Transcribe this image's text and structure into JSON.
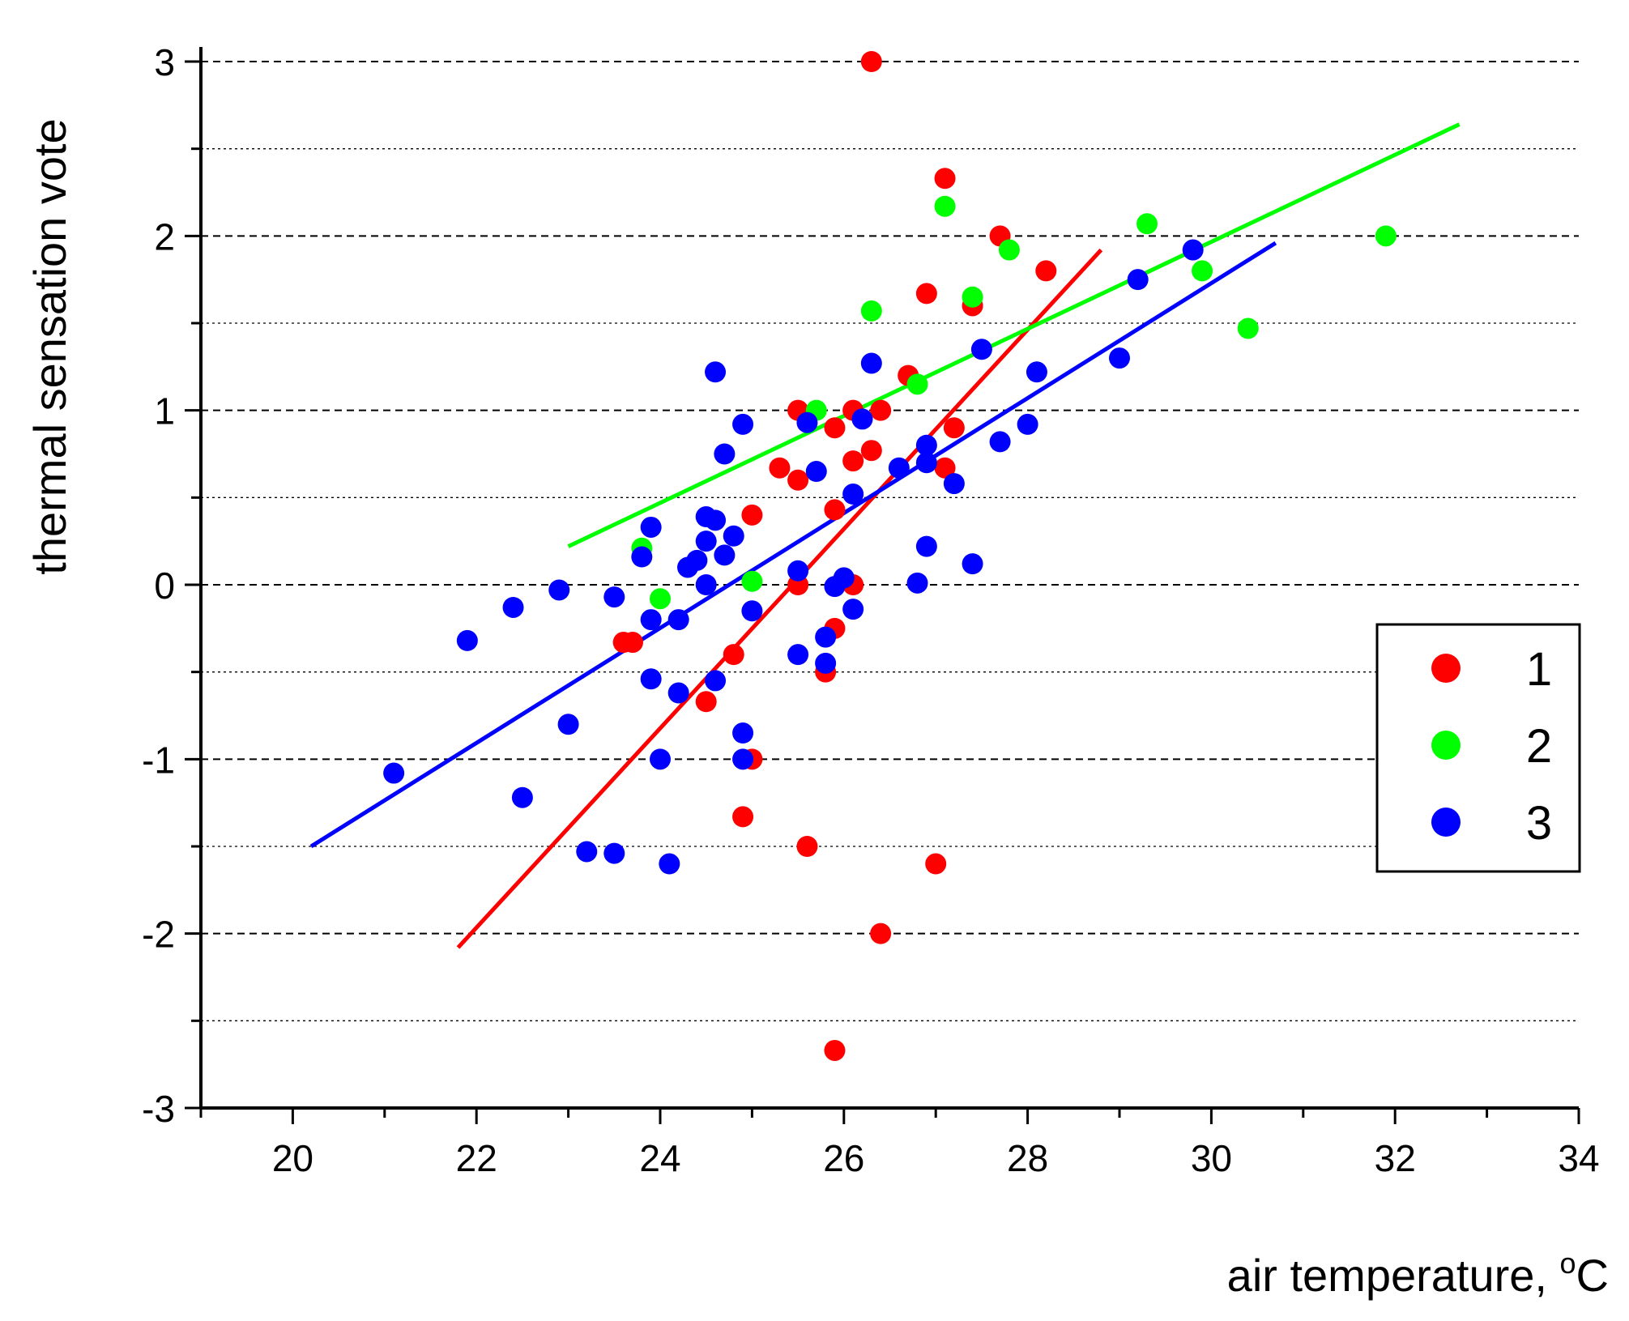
{
  "chart_data": {
    "type": "scatter",
    "title": "",
    "xlabel": "air temperature, ",
    "xlabel_unit": "oC",
    "ylabel": "thermal sensation vote",
    "xlim": [
      19,
      34
    ],
    "ylim": [
      -3,
      3
    ],
    "xticks": [
      20,
      22,
      24,
      26,
      28,
      30,
      32,
      34
    ],
    "xtick_labels": [
      "20",
      "22",
      "24",
      "26",
      "28",
      "30",
      "32",
      "34"
    ],
    "yticks": [
      -3,
      -2,
      -1,
      0,
      1,
      2,
      3
    ],
    "ytick_labels": [
      "-3",
      "-2",
      "-1",
      "0",
      "1",
      "2",
      "3"
    ],
    "grid": "horizontal dashed at integers, dotted at half-values",
    "legend_position": "right",
    "series": [
      {
        "name": "1",
        "color": "#ff0000",
        "points": [
          [
            26.3,
            3.0
          ],
          [
            27.1,
            2.33
          ],
          [
            27.7,
            2.0
          ],
          [
            28.2,
            1.8
          ],
          [
            26.9,
            1.67
          ],
          [
            27.4,
            1.6
          ],
          [
            26.7,
            1.2
          ],
          [
            25.5,
            1.0
          ],
          [
            26.1,
            1.0
          ],
          [
            26.4,
            1.0
          ],
          [
            25.9,
            0.9
          ],
          [
            27.2,
            0.9
          ],
          [
            26.1,
            0.71
          ],
          [
            26.3,
            0.77
          ],
          [
            25.3,
            0.67
          ],
          [
            25.5,
            0.6
          ],
          [
            27.1,
            0.67
          ],
          [
            25.9,
            0.43
          ],
          [
            25.0,
            0.4
          ],
          [
            25.5,
            0.0
          ],
          [
            26.1,
            0.0
          ],
          [
            25.9,
            -0.25
          ],
          [
            23.6,
            -0.33
          ],
          [
            23.7,
            -0.33
          ],
          [
            24.8,
            -0.4
          ],
          [
            25.8,
            -0.5
          ],
          [
            24.5,
            -0.67
          ],
          [
            25.0,
            -1.0
          ],
          [
            24.9,
            -1.33
          ],
          [
            25.6,
            -1.5
          ],
          [
            27.0,
            -1.6
          ],
          [
            26.4,
            -2.0
          ],
          [
            25.9,
            -2.67
          ]
        ],
        "fit": [
          [
            21.8,
            -2.08
          ],
          [
            28.8,
            1.92
          ]
        ]
      },
      {
        "name": "2",
        "color": "#00ff00",
        "points": [
          [
            27.1,
            2.17
          ],
          [
            29.3,
            2.07
          ],
          [
            31.9,
            2.0
          ],
          [
            27.8,
            1.92
          ],
          [
            29.9,
            1.8
          ],
          [
            27.4,
            1.65
          ],
          [
            26.3,
            1.57
          ],
          [
            30.4,
            1.47
          ],
          [
            26.8,
            1.15
          ],
          [
            25.7,
            1.0
          ],
          [
            23.8,
            0.21
          ],
          [
            25.0,
            0.02
          ],
          [
            24.0,
            -0.08
          ]
        ],
        "fit": [
          [
            23.0,
            0.22
          ],
          [
            32.7,
            2.64
          ]
        ]
      },
      {
        "name": "3",
        "color": "#0000ff",
        "points": [
          [
            29.8,
            1.92
          ],
          [
            29.2,
            1.75
          ],
          [
            27.5,
            1.35
          ],
          [
            29.0,
            1.3
          ],
          [
            26.3,
            1.27
          ],
          [
            24.6,
            1.22
          ],
          [
            28.1,
            1.22
          ],
          [
            26.2,
            0.95
          ],
          [
            25.6,
            0.93
          ],
          [
            24.9,
            0.92
          ],
          [
            28.0,
            0.92
          ],
          [
            27.7,
            0.82
          ],
          [
            26.9,
            0.8
          ],
          [
            24.7,
            0.75
          ],
          [
            26.9,
            0.7
          ],
          [
            26.6,
            0.67
          ],
          [
            25.7,
            0.65
          ],
          [
            27.2,
            0.58
          ],
          [
            26.1,
            0.52
          ],
          [
            24.5,
            0.39
          ],
          [
            24.6,
            0.37
          ],
          [
            23.9,
            0.33
          ],
          [
            24.8,
            0.28
          ],
          [
            24.5,
            0.25
          ],
          [
            26.9,
            0.22
          ],
          [
            24.7,
            0.17
          ],
          [
            23.8,
            0.16
          ],
          [
            24.4,
            0.14
          ],
          [
            27.4,
            0.12
          ],
          [
            24.3,
            0.1
          ],
          [
            25.5,
            0.08
          ],
          [
            26.0,
            0.04
          ],
          [
            26.8,
            0.01
          ],
          [
            24.5,
            0.0
          ],
          [
            25.9,
            -0.01
          ],
          [
            22.9,
            -0.03
          ],
          [
            23.5,
            -0.07
          ],
          [
            22.4,
            -0.13
          ],
          [
            26.1,
            -0.14
          ],
          [
            25.0,
            -0.15
          ],
          [
            23.9,
            -0.2
          ],
          [
            24.2,
            -0.2
          ],
          [
            25.8,
            -0.3
          ],
          [
            21.9,
            -0.32
          ],
          [
            25.5,
            -0.4
          ],
          [
            25.8,
            -0.45
          ],
          [
            23.9,
            -0.54
          ],
          [
            24.6,
            -0.55
          ],
          [
            24.2,
            -0.62
          ],
          [
            23.0,
            -0.8
          ],
          [
            24.9,
            -0.85
          ],
          [
            24.0,
            -1.0
          ],
          [
            24.9,
            -1.0
          ],
          [
            21.1,
            -1.08
          ],
          [
            22.5,
            -1.22
          ],
          [
            23.2,
            -1.53
          ],
          [
            23.5,
            -1.54
          ],
          [
            24.1,
            -1.6
          ]
        ],
        "fit": [
          [
            20.2,
            -1.5
          ],
          [
            30.7,
            1.96
          ]
        ]
      }
    ]
  }
}
